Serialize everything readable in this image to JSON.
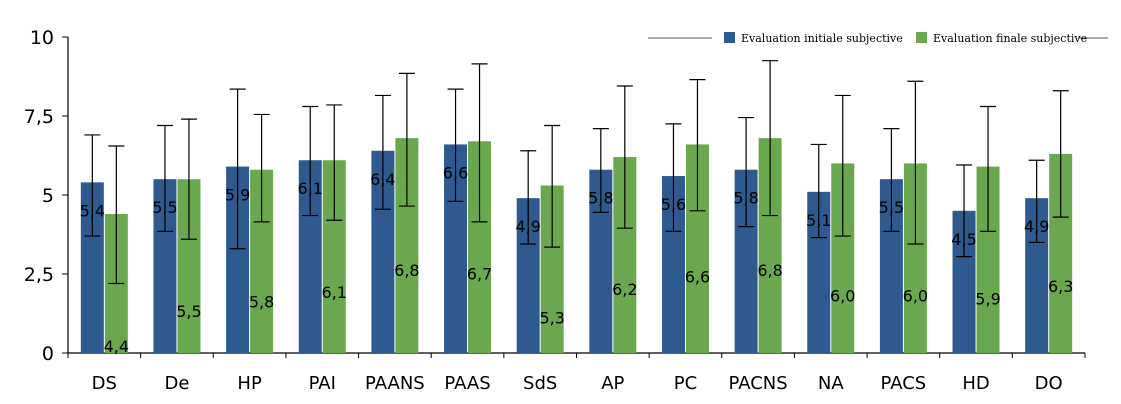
{
  "chart_data": {
    "type": "bar",
    "categories": [
      "DS",
      "De",
      "HP",
      "PAI",
      "PAANS",
      "PAAS",
      "SdS",
      "AP",
      "PC",
      "PACNS",
      "NA",
      "PACS",
      "HD",
      "DO"
    ],
    "series": [
      {
        "name": "Evaluation initiale subjective",
        "color": "#2e5a8f",
        "values": [
          5.4,
          5.5,
          5.9,
          6.1,
          6.4,
          6.6,
          4.9,
          5.8,
          5.6,
          5.8,
          5.1,
          5.5,
          4.5,
          4.9
        ],
        "labels": [
          "5,4",
          "5,5",
          "5,9",
          "6,1",
          "6,4",
          "6,6",
          "4,9",
          "5,8",
          "5,6",
          "5,8",
          "5,1",
          "5,5",
          "4,5",
          "4,9"
        ],
        "error_low": [
          3.7,
          3.85,
          3.3,
          4.35,
          4.55,
          4.8,
          3.45,
          4.45,
          3.85,
          4.0,
          3.65,
          3.85,
          3.05,
          3.5
        ],
        "error_high": [
          6.9,
          7.2,
          8.35,
          7.8,
          8.15,
          8.35,
          6.4,
          7.1,
          7.25,
          7.45,
          6.6,
          7.1,
          5.95,
          6.1
        ]
      },
      {
        "name": "Evaluation finale subjective",
        "color": "#6aa84f",
        "values": [
          4.4,
          5.5,
          5.8,
          6.1,
          6.8,
          6.7,
          5.3,
          6.2,
          6.6,
          6.8,
          6.0,
          6.0,
          5.9,
          6.3
        ],
        "labels": [
          "4,4",
          "5,5",
          "5,8",
          "6,1",
          "6,8",
          "6,7",
          "5,3",
          "6,2",
          "6,6",
          "6,8",
          "6,0",
          "6,0",
          "5,9",
          "6,3"
        ],
        "error_low": [
          2.2,
          3.6,
          4.15,
          4.2,
          4.65,
          4.15,
          3.35,
          3.95,
          4.5,
          4.35,
          3.7,
          3.45,
          3.85,
          4.3
        ],
        "error_high": [
          6.55,
          7.4,
          7.55,
          7.85,
          8.85,
          9.15,
          7.2,
          8.45,
          8.65,
          9.25,
          8.15,
          8.6,
          7.8,
          8.3
        ]
      }
    ],
    "yticks": [
      "0",
      "2,5",
      "5",
      "7,5",
      "10"
    ],
    "ylim": [
      0,
      10
    ],
    "grid": false,
    "legend": "top-right"
  }
}
